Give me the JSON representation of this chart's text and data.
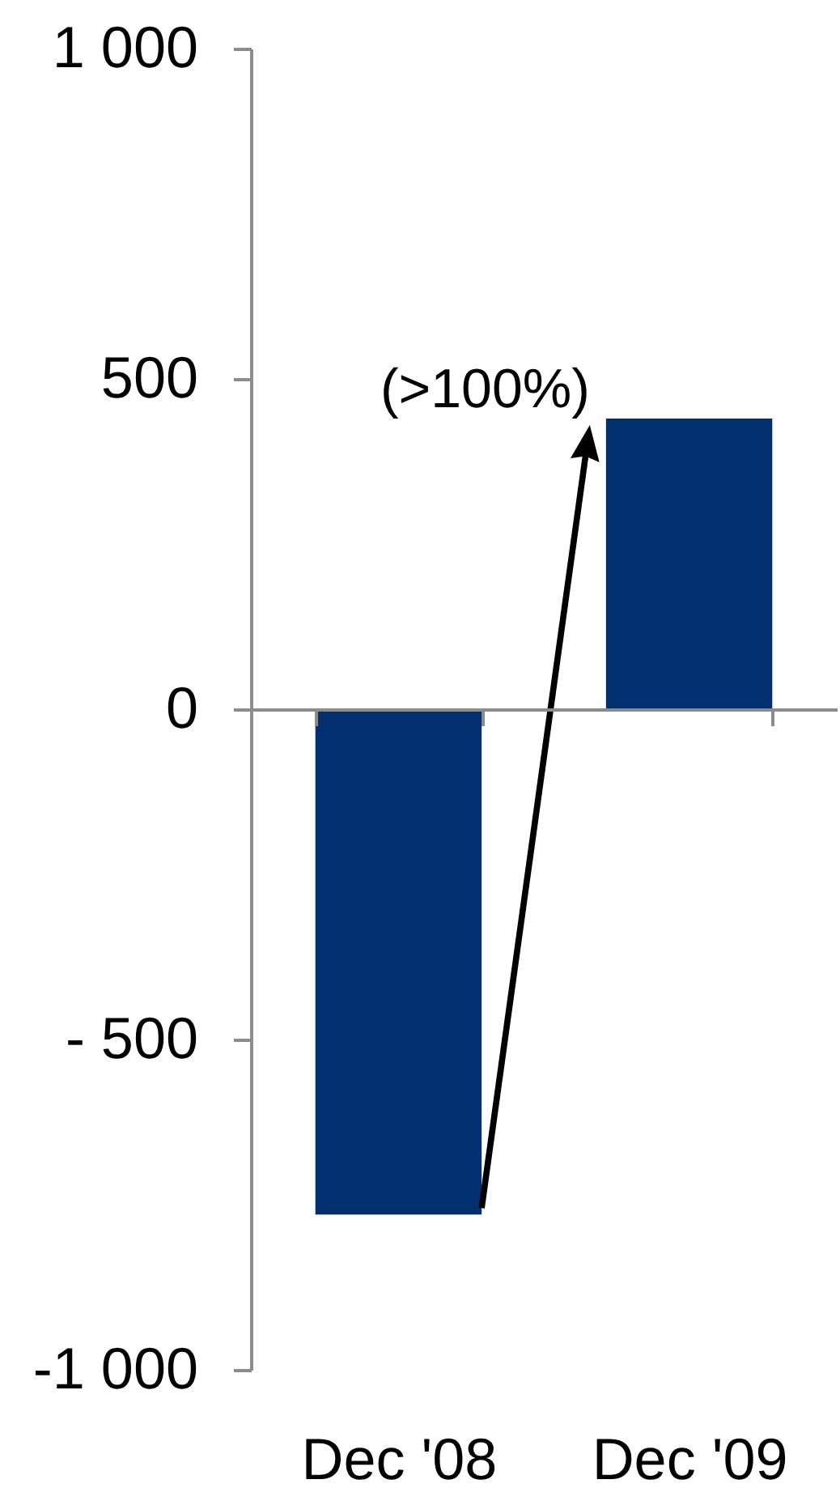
{
  "chart_data": {
    "type": "bar",
    "categories": [
      "Dec '08",
      "Dec '09"
    ],
    "values": [
      -765,
      440
    ],
    "color": "#02306e",
    "ylim": [
      -1000,
      1000
    ],
    "yticks": [
      {
        "value": 1000,
        "label": "1 000"
      },
      500,
      0,
      {
        "value": -500,
        "label": "- 500"
      },
      {
        "value": -1000,
        "label": "-1 000"
      }
    ],
    "annotations": [
      "(>100%)"
    ]
  }
}
